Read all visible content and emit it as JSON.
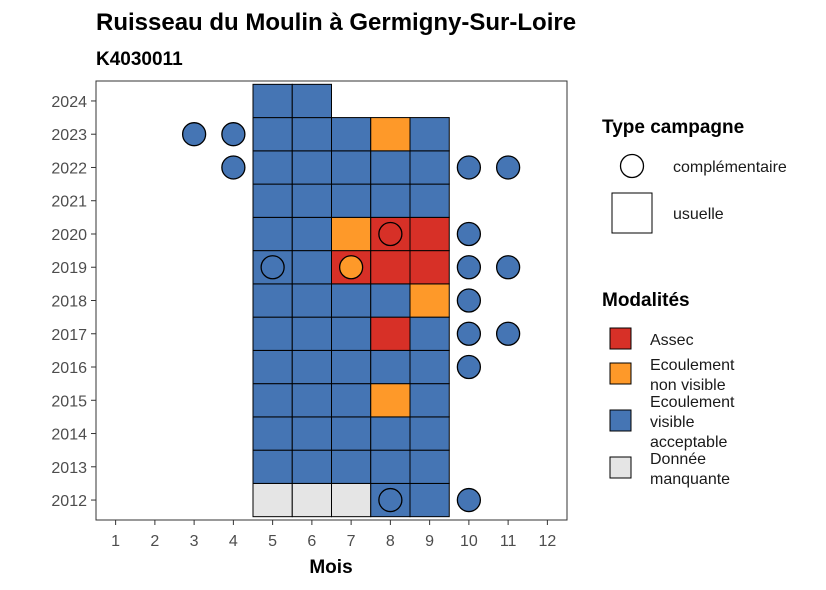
{
  "chart_data": {
    "type": "heatmap",
    "title": "Ruisseau du Moulin à Germigny-Sur-Loire",
    "subtitle": "K4030011",
    "xlabel": "Mois",
    "ylabel": "",
    "x_ticks": [
      1,
      2,
      3,
      4,
      5,
      6,
      7,
      8,
      9,
      10,
      11,
      12
    ],
    "y_ticks": [
      2012,
      2013,
      2014,
      2015,
      2016,
      2017,
      2018,
      2019,
      2020,
      2021,
      2022,
      2023,
      2024
    ],
    "xlim": [
      0.5,
      12.5
    ],
    "ylim": [
      2011.4,
      2024.6
    ],
    "grid": false,
    "legend_position": "right",
    "legend_shape": {
      "title": "Type campagne",
      "entries": [
        {
          "key": "complementaire",
          "label": "complémentaire",
          "shape": "circle"
        },
        {
          "key": "usuelle",
          "label": "usuelle",
          "shape": "square"
        }
      ]
    },
    "legend_fill": {
      "title": "Modalités",
      "entries": [
        {
          "key": "assec",
          "lines": [
            "Assec"
          ],
          "color": "#d73027"
        },
        {
          "key": "ecoulement_non_visible",
          "lines": [
            "Ecoulement",
            "non visible"
          ],
          "color": "#fe9929"
        },
        {
          "key": "ecoulement_visible",
          "lines": [
            "Ecoulement",
            "visible",
            "acceptable"
          ],
          "color": "#4575b4"
        },
        {
          "key": "donnee_manquante",
          "lines": [
            "Donnée",
            "manquante"
          ],
          "color": "#e5e5e5"
        }
      ]
    },
    "cells": [
      {
        "year": 2012,
        "month": 5,
        "modalite": "donnee_manquante"
      },
      {
        "year": 2012,
        "month": 6,
        "modalite": "donnee_manquante"
      },
      {
        "year": 2012,
        "month": 7,
        "modalite": "donnee_manquante"
      },
      {
        "year": 2012,
        "month": 8,
        "modalite": "ecoulement_visible"
      },
      {
        "year": 2012,
        "month": 9,
        "modalite": "ecoulement_visible"
      },
      {
        "year": 2013,
        "month": 5,
        "modalite": "ecoulement_visible"
      },
      {
        "year": 2013,
        "month": 6,
        "modalite": "ecoulement_visible"
      },
      {
        "year": 2013,
        "month": 7,
        "modalite": "ecoulement_visible"
      },
      {
        "year": 2013,
        "month": 8,
        "modalite": "ecoulement_visible"
      },
      {
        "year": 2013,
        "month": 9,
        "modalite": "ecoulement_visible"
      },
      {
        "year": 2014,
        "month": 5,
        "modalite": "ecoulement_visible"
      },
      {
        "year": 2014,
        "month": 6,
        "modalite": "ecoulement_visible"
      },
      {
        "year": 2014,
        "month": 7,
        "modalite": "ecoulement_visible"
      },
      {
        "year": 2014,
        "month": 8,
        "modalite": "ecoulement_visible"
      },
      {
        "year": 2014,
        "month": 9,
        "modalite": "ecoulement_visible"
      },
      {
        "year": 2015,
        "month": 5,
        "modalite": "ecoulement_visible"
      },
      {
        "year": 2015,
        "month": 6,
        "modalite": "ecoulement_visible"
      },
      {
        "year": 2015,
        "month": 7,
        "modalite": "ecoulement_visible"
      },
      {
        "year": 2015,
        "month": 8,
        "modalite": "ecoulement_non_visible"
      },
      {
        "year": 2015,
        "month": 9,
        "modalite": "ecoulement_visible"
      },
      {
        "year": 2016,
        "month": 5,
        "modalite": "ecoulement_visible"
      },
      {
        "year": 2016,
        "month": 6,
        "modalite": "ecoulement_visible"
      },
      {
        "year": 2016,
        "month": 7,
        "modalite": "ecoulement_visible"
      },
      {
        "year": 2016,
        "month": 8,
        "modalite": "ecoulement_visible"
      },
      {
        "year": 2016,
        "month": 9,
        "modalite": "ecoulement_visible"
      },
      {
        "year": 2017,
        "month": 5,
        "modalite": "ecoulement_visible"
      },
      {
        "year": 2017,
        "month": 6,
        "modalite": "ecoulement_visible"
      },
      {
        "year": 2017,
        "month": 7,
        "modalite": "ecoulement_visible"
      },
      {
        "year": 2017,
        "month": 8,
        "modalite": "assec"
      },
      {
        "year": 2017,
        "month": 9,
        "modalite": "ecoulement_visible"
      },
      {
        "year": 2018,
        "month": 5,
        "modalite": "ecoulement_visible"
      },
      {
        "year": 2018,
        "month": 6,
        "modalite": "ecoulement_visible"
      },
      {
        "year": 2018,
        "month": 7,
        "modalite": "ecoulement_visible"
      },
      {
        "year": 2018,
        "month": 8,
        "modalite": "ecoulement_visible"
      },
      {
        "year": 2018,
        "month": 9,
        "modalite": "ecoulement_non_visible"
      },
      {
        "year": 2019,
        "month": 5,
        "modalite": "ecoulement_visible"
      },
      {
        "year": 2019,
        "month": 6,
        "modalite": "ecoulement_visible"
      },
      {
        "year": 2019,
        "month": 7,
        "modalite": "assec"
      },
      {
        "year": 2019,
        "month": 8,
        "modalite": "assec"
      },
      {
        "year": 2019,
        "month": 9,
        "modalite": "assec"
      },
      {
        "year": 2020,
        "month": 5,
        "modalite": "ecoulement_visible"
      },
      {
        "year": 2020,
        "month": 6,
        "modalite": "ecoulement_visible"
      },
      {
        "year": 2020,
        "month": 7,
        "modalite": "ecoulement_non_visible"
      },
      {
        "year": 2020,
        "month": 8,
        "modalite": "assec"
      },
      {
        "year": 2020,
        "month": 9,
        "modalite": "assec"
      },
      {
        "year": 2021,
        "month": 5,
        "modalite": "ecoulement_visible"
      },
      {
        "year": 2021,
        "month": 6,
        "modalite": "ecoulement_visible"
      },
      {
        "year": 2021,
        "month": 7,
        "modalite": "ecoulement_visible"
      },
      {
        "year": 2021,
        "month": 8,
        "modalite": "ecoulement_visible"
      },
      {
        "year": 2021,
        "month": 9,
        "modalite": "ecoulement_visible"
      },
      {
        "year": 2022,
        "month": 5,
        "modalite": "ecoulement_visible"
      },
      {
        "year": 2022,
        "month": 6,
        "modalite": "ecoulement_visible"
      },
      {
        "year": 2022,
        "month": 7,
        "modalite": "ecoulement_visible"
      },
      {
        "year": 2022,
        "month": 8,
        "modalite": "ecoulement_visible"
      },
      {
        "year": 2022,
        "month": 9,
        "modalite": "ecoulement_visible"
      },
      {
        "year": 2023,
        "month": 5,
        "modalite": "ecoulement_visible"
      },
      {
        "year": 2023,
        "month": 6,
        "modalite": "ecoulement_visible"
      },
      {
        "year": 2023,
        "month": 7,
        "modalite": "ecoulement_visible"
      },
      {
        "year": 2023,
        "month": 8,
        "modalite": "ecoulement_non_visible"
      },
      {
        "year": 2023,
        "month": 9,
        "modalite": "ecoulement_visible"
      },
      {
        "year": 2024,
        "month": 5,
        "modalite": "ecoulement_visible"
      },
      {
        "year": 2024,
        "month": 6,
        "modalite": "ecoulement_visible"
      }
    ],
    "points": [
      {
        "year": 2012,
        "month": 8,
        "modalite": "ecoulement_visible"
      },
      {
        "year": 2012,
        "month": 10,
        "modalite": "ecoulement_visible"
      },
      {
        "year": 2016,
        "month": 10,
        "modalite": "ecoulement_visible"
      },
      {
        "year": 2017,
        "month": 10,
        "modalite": "ecoulement_visible"
      },
      {
        "year": 2017,
        "month": 11,
        "modalite": "ecoulement_visible"
      },
      {
        "year": 2018,
        "month": 10,
        "modalite": "ecoulement_visible"
      },
      {
        "year": 2019,
        "month": 5,
        "modalite": "ecoulement_visible"
      },
      {
        "year": 2019,
        "month": 7,
        "modalite": "ecoulement_non_visible"
      },
      {
        "year": 2019,
        "month": 10,
        "modalite": "ecoulement_visible"
      },
      {
        "year": 2019,
        "month": 11,
        "modalite": "ecoulement_visible"
      },
      {
        "year": 2020,
        "month": 8,
        "modalite": "assec"
      },
      {
        "year": 2020,
        "month": 10,
        "modalite": "ecoulement_visible"
      },
      {
        "year": 2022,
        "month": 4,
        "modalite": "ecoulement_visible"
      },
      {
        "year": 2022,
        "month": 10,
        "modalite": "ecoulement_visible"
      },
      {
        "year": 2022,
        "month": 11,
        "modalite": "ecoulement_visible"
      },
      {
        "year": 2023,
        "month": 3,
        "modalite": "ecoulement_visible"
      },
      {
        "year": 2023,
        "month": 4,
        "modalite": "ecoulement_visible"
      }
    ]
  }
}
